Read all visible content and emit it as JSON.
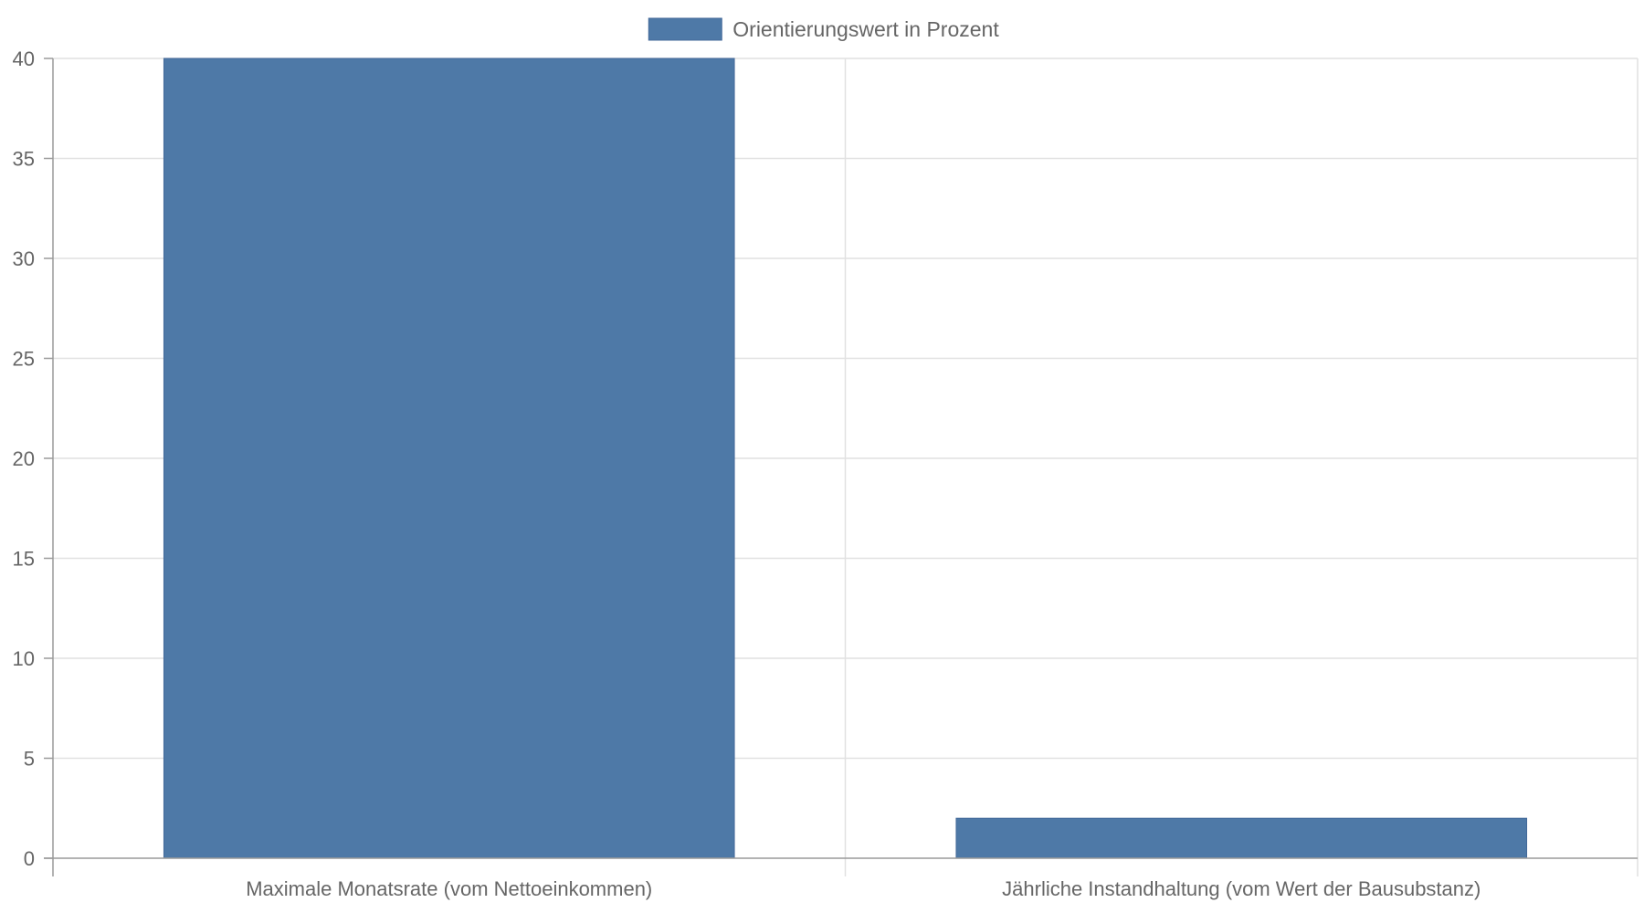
{
  "chart_data": {
    "type": "bar",
    "categories": [
      "Maximale Monatsrate (vom Nettoeinkommen)",
      "Jährliche Instandhaltung (vom Wert der Bausubstanz)"
    ],
    "series": [
      {
        "name": "Orientierungswert in Prozent",
        "values": [
          40,
          2
        ],
        "color": "#4e79a7"
      }
    ],
    "ylim": [
      0,
      40
    ],
    "yticks": [
      0,
      5,
      10,
      15,
      20,
      25,
      30,
      35,
      40
    ],
    "grid": true,
    "legend_position": "top-center"
  }
}
